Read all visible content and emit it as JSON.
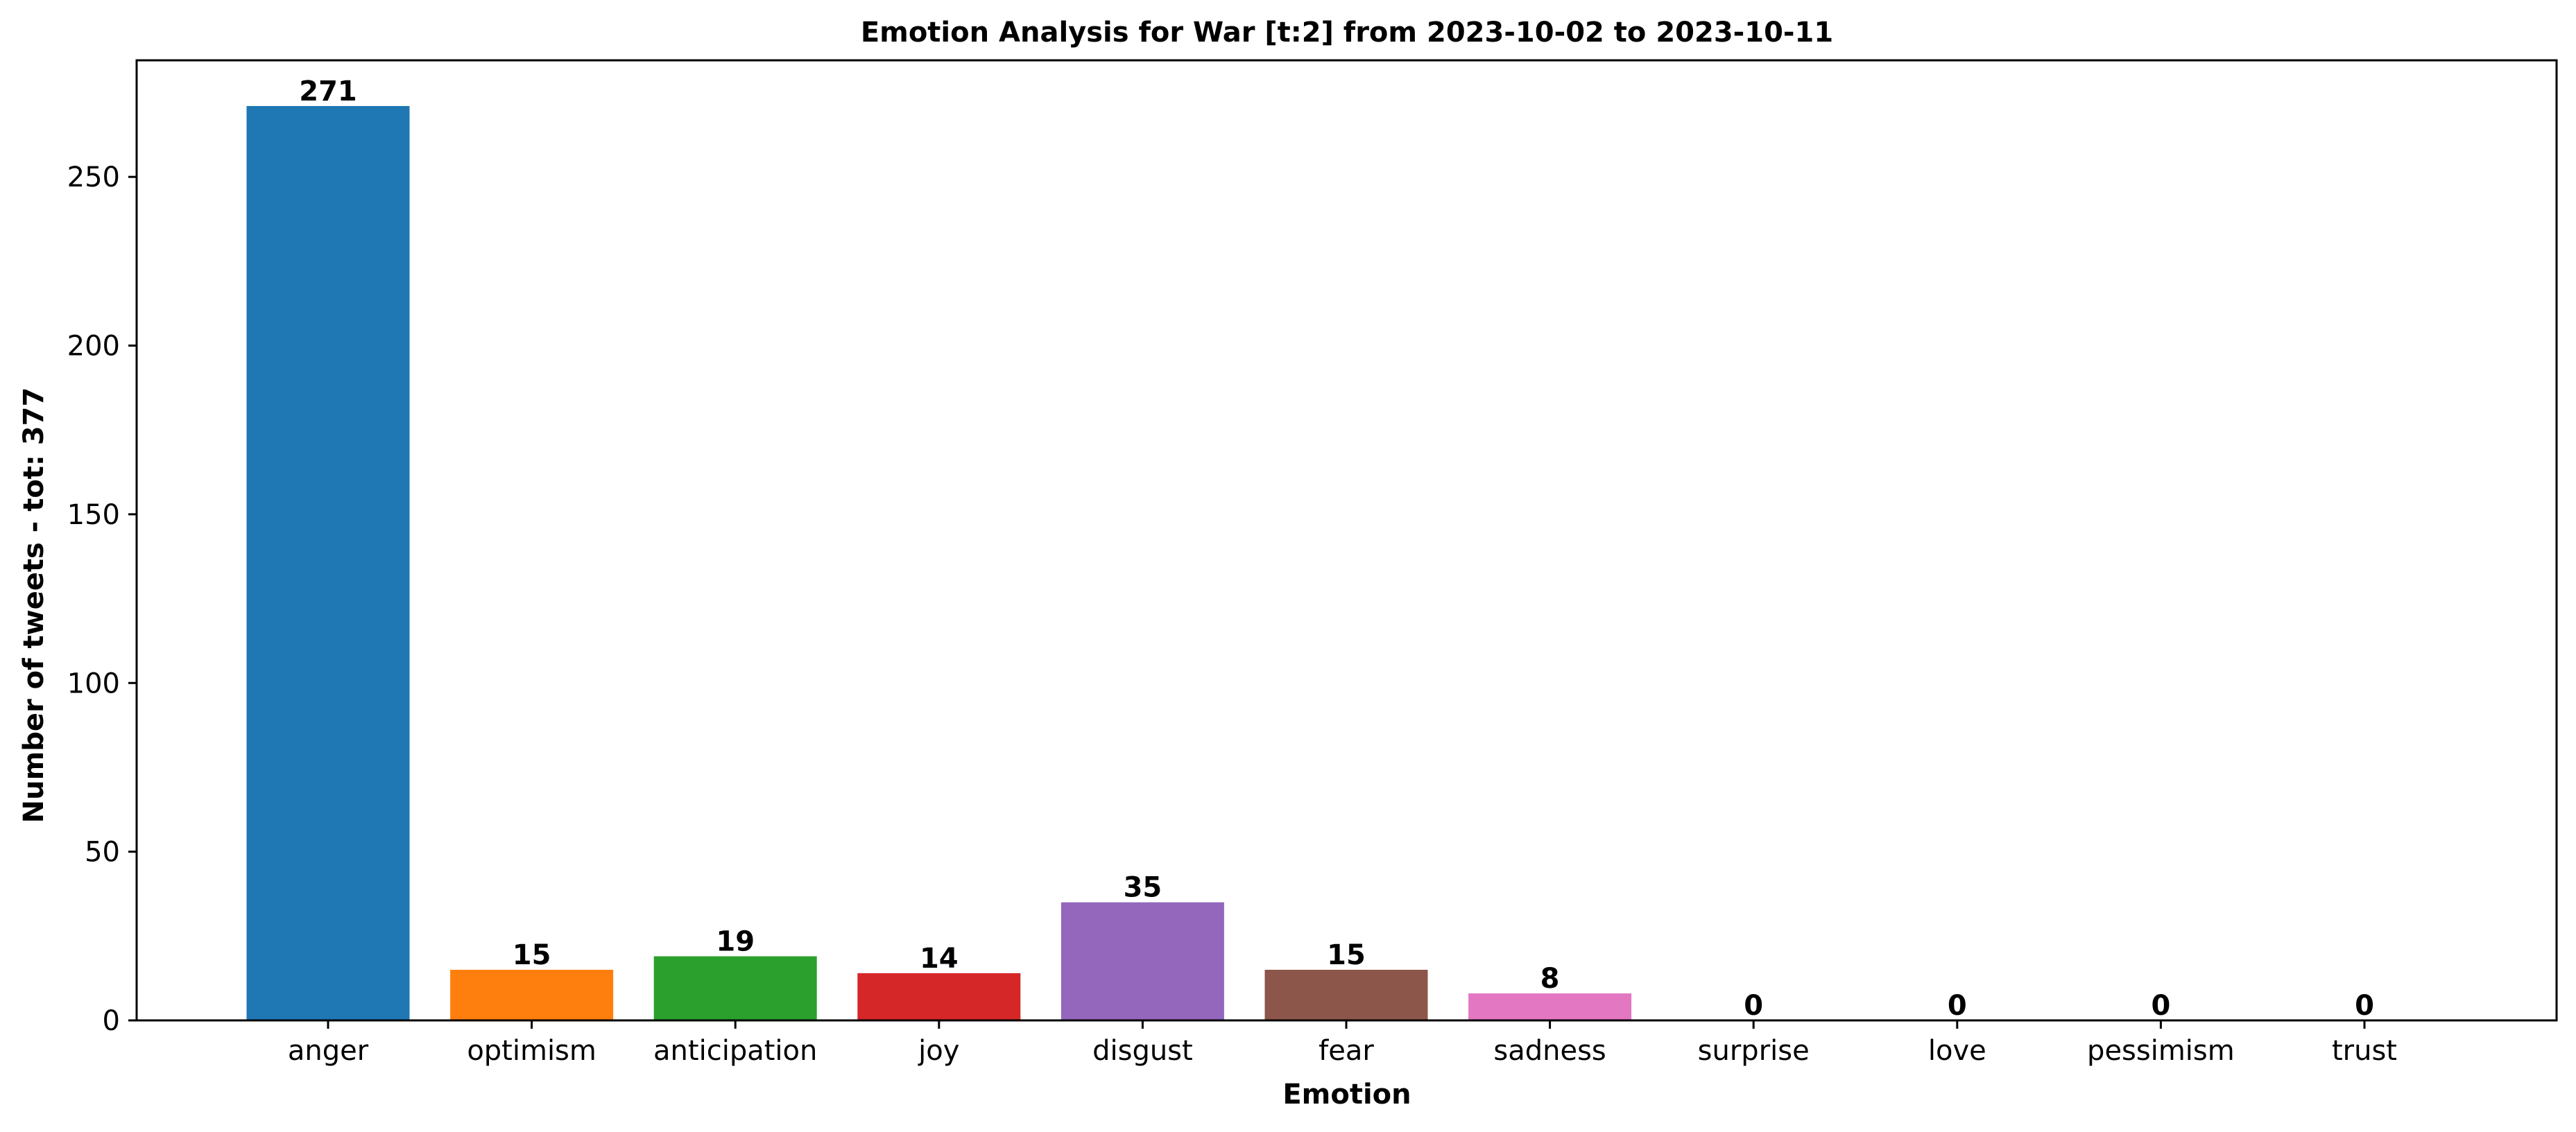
{
  "chart_data": {
    "type": "bar",
    "title": "Emotion Analysis for War [t:2] from 2023-10-02 to 2023-10-11",
    "xlabel": "Emotion",
    "ylabel": "Number of tweets - tot: 377",
    "categories": [
      "anger",
      "optimism",
      "anticipation",
      "joy",
      "disgust",
      "fear",
      "sadness",
      "surprise",
      "love",
      "pessimism",
      "trust"
    ],
    "values": [
      271,
      15,
      19,
      14,
      35,
      15,
      8,
      0,
      0,
      0,
      0
    ],
    "colors": [
      "#1f77b4",
      "#ff7f0e",
      "#2ca02c",
      "#d62728",
      "#9467bd",
      "#8c564b",
      "#e377c2",
      "#7f7f7f",
      "#bcbd22",
      "#17becf",
      "#1f77b4"
    ],
    "ylim": [
      0,
      284.55
    ],
    "yticks": [
      0,
      50,
      100,
      150,
      200,
      250
    ],
    "grid": false,
    "legend": "none"
  }
}
